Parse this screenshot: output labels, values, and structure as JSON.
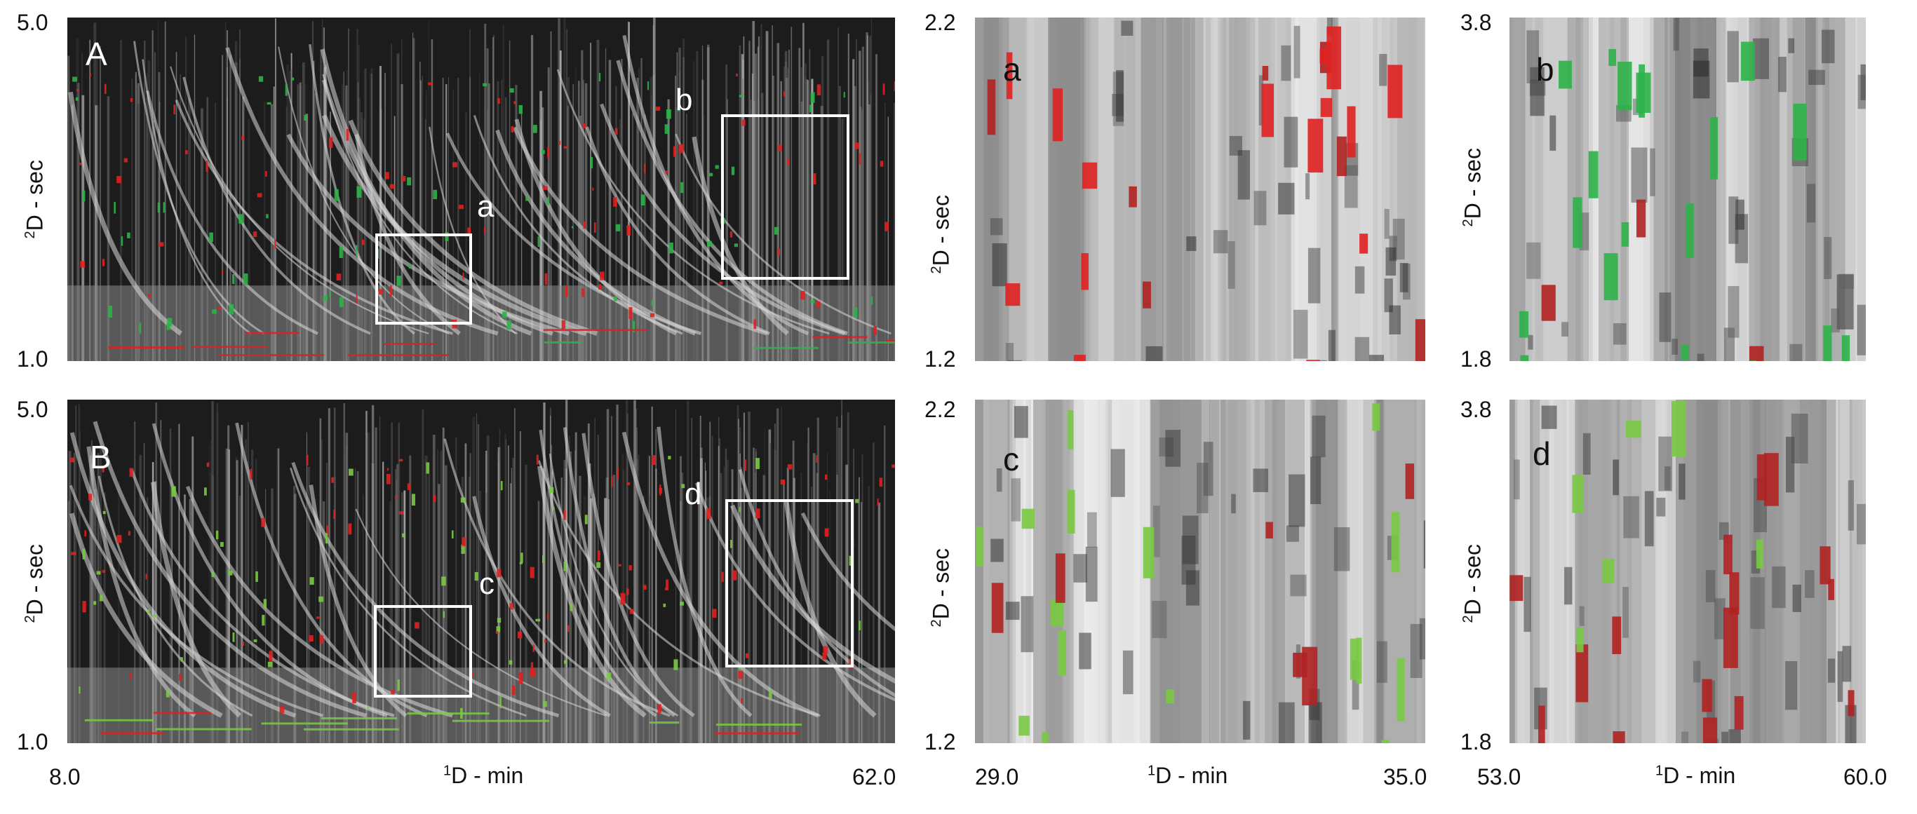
{
  "chart_data": [
    {
      "type": "heatmap",
      "panel": "A",
      "title": "",
      "xlabel_sup": "1",
      "xlabel": "D - min",
      "ylabel_sup": "2",
      "ylabel": "D - sec",
      "xlim": [
        8.0,
        62.0
      ],
      "ylim": [
        1.0,
        5.0
      ],
      "yticks": [
        "5.0",
        "1.0"
      ],
      "regions": [
        {
          "label": "a",
          "x": [
            28.5,
            34.7
          ],
          "y": [
            1.45,
            2.9
          ]
        },
        {
          "label": "b",
          "x": [
            50.8,
            59.2
          ],
          "y": [
            1.95,
            4.0
          ]
        }
      ],
      "colors": {
        "highlight_a": "#e02020",
        "highlight_b": "#2db34a"
      }
    },
    {
      "type": "heatmap",
      "panel": "B",
      "title": "",
      "xlabel_sup": "1",
      "xlabel": "D - min",
      "ylabel_sup": "2",
      "ylabel": "D - sec",
      "xlim": [
        8.0,
        62.0
      ],
      "ylim": [
        1.0,
        5.0
      ],
      "yticks": [
        "5.0",
        "1.0"
      ],
      "xticks": [
        "8.0",
        "62.0"
      ],
      "regions": [
        {
          "label": "c",
          "x": [
            28.5,
            34.7
          ],
          "y": [
            1.55,
            2.6
          ]
        },
        {
          "label": "d",
          "x": [
            51.0,
            59.5
          ],
          "y": [
            1.9,
            3.85
          ]
        }
      ],
      "colors": {
        "highlight_a": "#e02020",
        "highlight_b": "#7ac943"
      }
    },
    {
      "type": "heatmap",
      "panel": "a",
      "xlabel_sup": "1",
      "xlabel": "D - min",
      "ylabel_sup": "2",
      "ylabel": "D - sec",
      "xlim": [
        29.0,
        35.0
      ],
      "ylim": [
        1.2,
        2.2
      ],
      "yticks": [
        "2.2",
        "1.2"
      ]
    },
    {
      "type": "heatmap",
      "panel": "c",
      "xlabel_sup": "1",
      "xlabel": "D - min",
      "ylabel_sup": "2",
      "ylabel": "D - sec",
      "xlim": [
        29.0,
        35.0
      ],
      "ylim": [
        1.2,
        2.2
      ],
      "yticks": [
        "2.2",
        "1.2"
      ],
      "xticks": [
        "29.0",
        "35.0"
      ]
    },
    {
      "type": "heatmap",
      "panel": "b",
      "xlabel_sup": "1",
      "xlabel": "D - min",
      "ylabel_sup": "2",
      "ylabel": "D - sec",
      "xlim": [
        53.0,
        60.0
      ],
      "ylim": [
        1.8,
        3.8
      ],
      "yticks": [
        "3.8",
        "1.8"
      ]
    },
    {
      "type": "heatmap",
      "panel": "d",
      "xlabel_sup": "1",
      "xlabel": "D - min",
      "ylabel_sup": "2",
      "ylabel": "D - sec",
      "xlim": [
        53.0,
        60.0
      ],
      "ylim": [
        1.8,
        3.8
      ],
      "yticks": [
        "3.8",
        "1.8"
      ],
      "xticks": [
        "53.0",
        "60.0"
      ]
    }
  ]
}
